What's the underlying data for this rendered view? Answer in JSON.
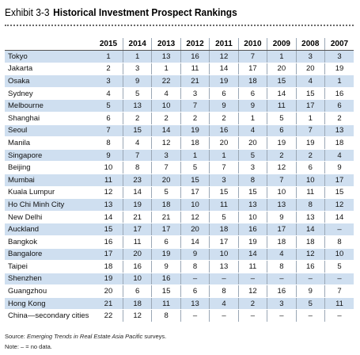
{
  "exhibit": {
    "label": "Exhibit 3-3",
    "title": "Historical Investment Prospect Rankings"
  },
  "table": {
    "years": [
      "2015",
      "2014",
      "2013",
      "2012",
      "2011",
      "2010",
      "2009",
      "2008",
      "2007"
    ],
    "rows": [
      {
        "city": "Tokyo",
        "ranks": [
          "1",
          "1",
          "13",
          "16",
          "12",
          "7",
          "1",
          "3",
          "3"
        ]
      },
      {
        "city": "Jakarta",
        "ranks": [
          "2",
          "3",
          "1",
          "11",
          "14",
          "17",
          "20",
          "20",
          "19"
        ]
      },
      {
        "city": "Osaka",
        "ranks": [
          "3",
          "9",
          "22",
          "21",
          "19",
          "18",
          "15",
          "4",
          "1"
        ]
      },
      {
        "city": "Sydney",
        "ranks": [
          "4",
          "5",
          "4",
          "3",
          "6",
          "6",
          "14",
          "15",
          "16"
        ]
      },
      {
        "city": "Melbourne",
        "ranks": [
          "5",
          "13",
          "10",
          "7",
          "9",
          "9",
          "11",
          "17",
          "6"
        ]
      },
      {
        "city": "Shanghai",
        "ranks": [
          "6",
          "2",
          "2",
          "2",
          "2",
          "1",
          "5",
          "1",
          "2"
        ]
      },
      {
        "city": "Seoul",
        "ranks": [
          "7",
          "15",
          "14",
          "19",
          "16",
          "4",
          "6",
          "7",
          "13"
        ]
      },
      {
        "city": "Manila",
        "ranks": [
          "8",
          "4",
          "12",
          "18",
          "20",
          "20",
          "19",
          "19",
          "18"
        ]
      },
      {
        "city": "Singapore",
        "ranks": [
          "9",
          "7",
          "3",
          "1",
          "1",
          "5",
          "2",
          "2",
          "4"
        ]
      },
      {
        "city": "Beijing",
        "ranks": [
          "10",
          "8",
          "7",
          "5",
          "7",
          "3",
          "12",
          "6",
          "9"
        ]
      },
      {
        "city": "Mumbai",
        "ranks": [
          "11",
          "23",
          "20",
          "15",
          "3",
          "8",
          "7",
          "10",
          "17"
        ]
      },
      {
        "city": "Kuala Lumpur",
        "ranks": [
          "12",
          "14",
          "5",
          "17",
          "15",
          "15",
          "10",
          "11",
          "15"
        ]
      },
      {
        "city": "Ho Chi Minh City",
        "ranks": [
          "13",
          "19",
          "18",
          "10",
          "11",
          "13",
          "13",
          "8",
          "12"
        ]
      },
      {
        "city": "New Delhi",
        "ranks": [
          "14",
          "21",
          "21",
          "12",
          "5",
          "10",
          "9",
          "13",
          "14"
        ]
      },
      {
        "city": "Auckland",
        "ranks": [
          "15",
          "17",
          "17",
          "20",
          "18",
          "16",
          "17",
          "14",
          "–"
        ]
      },
      {
        "city": "Bangkok",
        "ranks": [
          "16",
          "11",
          "6",
          "14",
          "17",
          "19",
          "18",
          "18",
          "8"
        ]
      },
      {
        "city": "Bangalore",
        "ranks": [
          "17",
          "20",
          "19",
          "9",
          "10",
          "14",
          "4",
          "12",
          "10"
        ]
      },
      {
        "city": "Taipei",
        "ranks": [
          "18",
          "16",
          "9",
          "8",
          "13",
          "11",
          "8",
          "16",
          "5"
        ]
      },
      {
        "city": "Shenzhen",
        "ranks": [
          "19",
          "10",
          "16",
          "–",
          "–",
          "–",
          "–",
          "–",
          "–"
        ]
      },
      {
        "city": "Guangzhou",
        "ranks": [
          "20",
          "6",
          "15",
          "6",
          "8",
          "12",
          "16",
          "9",
          "7"
        ]
      },
      {
        "city": "Hong Kong",
        "ranks": [
          "21",
          "18",
          "11",
          "13",
          "4",
          "2",
          "3",
          "5",
          "11"
        ]
      },
      {
        "city": "China—secondary cities",
        "ranks": [
          "22",
          "12",
          "8",
          "–",
          "–",
          "–",
          "–",
          "–",
          "–"
        ]
      }
    ]
  },
  "source": {
    "prefix": "Source: ",
    "publication": "Emerging Trends in Real Estate Asia Pacific",
    "suffix": " surveys."
  },
  "note": "Note: – = no data."
}
